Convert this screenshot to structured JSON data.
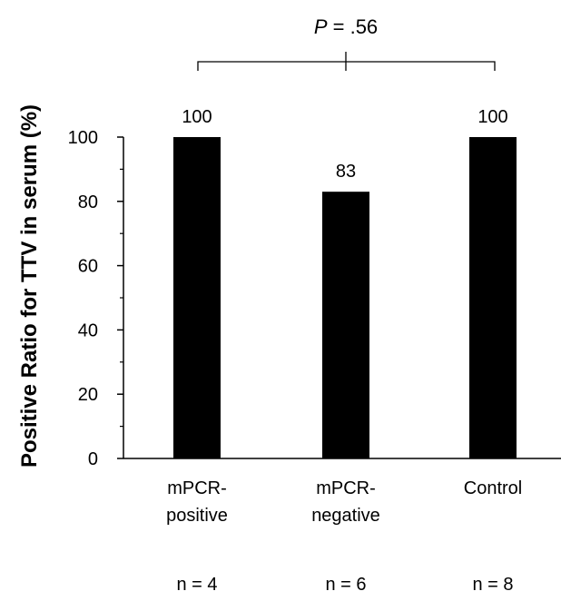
{
  "chart_data": {
    "type": "bar",
    "categories": [
      [
        "mPCR-",
        "positive"
      ],
      [
        "mPCR-",
        "negative"
      ],
      [
        "Control"
      ]
    ],
    "values": [
      100,
      83,
      100
    ],
    "data_labels": [
      "100",
      "83",
      "100"
    ],
    "group_sizes": [
      "n = 4",
      "n = 6",
      "n = 8"
    ],
    "ylabel": "Positive Ratio for TTV in serum (%)",
    "xlabel": "",
    "ylim": [
      0,
      100
    ],
    "yticks": [
      "0",
      "20",
      "40",
      "60",
      "80",
      "100"
    ],
    "annotation": {
      "p_italic": "P",
      "p_rest": " = .56"
    },
    "grid": false,
    "legend": "none",
    "bar_color": "#000000"
  }
}
